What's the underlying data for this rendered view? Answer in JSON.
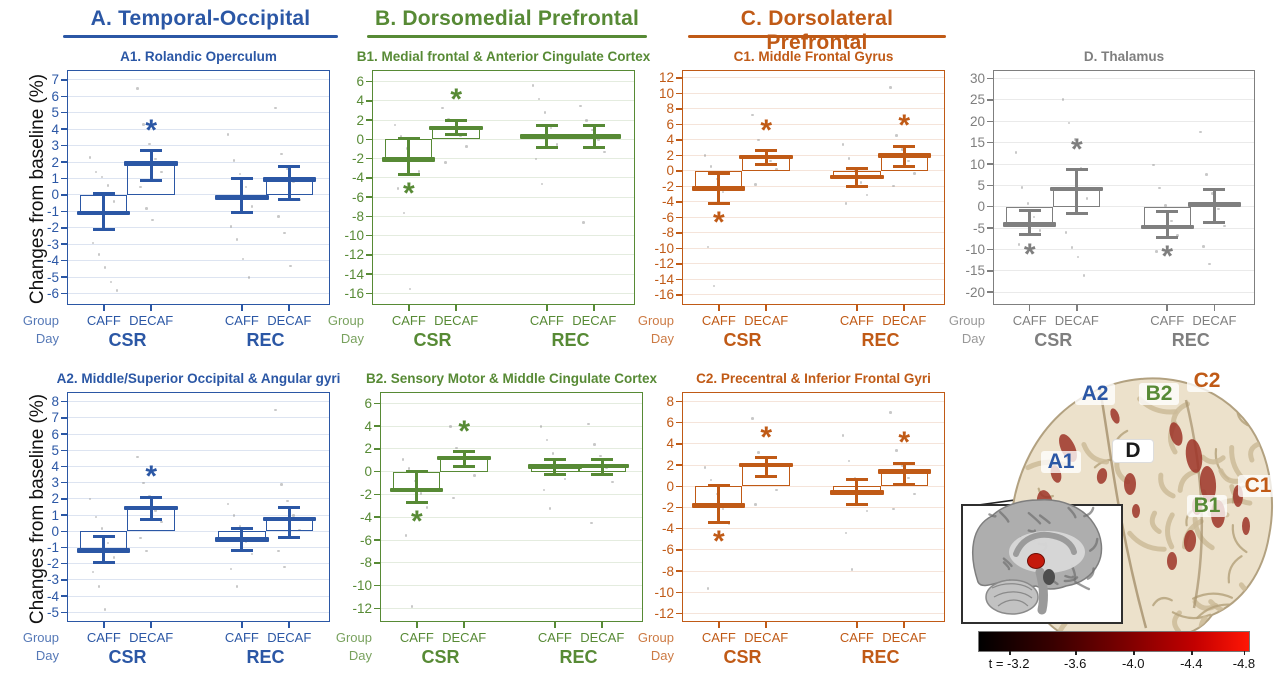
{
  "figure": {
    "ylabel": "Changes from baseline (%)",
    "row_labels": {
      "group": "Group",
      "day": "Day"
    },
    "conditions": [
      "CAFF",
      "DECAF"
    ],
    "days": [
      "CSR",
      "REC"
    ],
    "significance_marker": "*",
    "sections": [
      {
        "id": "A",
        "title": "A. Temporal-Occipital",
        "color": "#2b57a5"
      },
      {
        "id": "B",
        "title": "B. Dorsomedial Prefrontal",
        "color": "#578a35"
      },
      {
        "id": "C",
        "title": "C. Dorsolateral Prefrontal",
        "color": "#c05a16"
      }
    ]
  },
  "chart_data": [
    {
      "id": "A1",
      "section": "A",
      "type": "bar_with_error",
      "title": "A1. Rolandic Operculum",
      "color": "#2b57a5",
      "ylim": [
        -6.7,
        7.6
      ],
      "yticks": [
        7,
        6,
        5,
        4,
        3,
        2,
        1,
        0,
        -1,
        -2,
        -3,
        -4,
        -5,
        -6
      ],
      "groups": [
        {
          "day": "CSR",
          "condition": "CAFF",
          "value": -1.1,
          "ci_low": -2.1,
          "ci_high": 0.1,
          "significant": null,
          "points": [
            2.3,
            1.4,
            1.1,
            0.6,
            -0.4,
            -2.9,
            -3.6,
            -4.4,
            -5.3,
            -5.8
          ]
        },
        {
          "day": "CSR",
          "condition": "DECAF",
          "value": 1.9,
          "ci_low": 0.9,
          "ci_high": 2.7,
          "significant": "above",
          "points": [
            6.5,
            4.3,
            3.1,
            2.2,
            1.4,
            0.5,
            -0.8,
            -1.5
          ]
        },
        {
          "day": "REC",
          "condition": "CAFF",
          "value": -0.15,
          "ci_low": -1.1,
          "ci_high": 1.0,
          "significant": null,
          "points": [
            3.7,
            2.1,
            1.3,
            0.5,
            -0.7,
            -1.9,
            -2.7,
            -3.9,
            -5.0
          ]
        },
        {
          "day": "REC",
          "condition": "DECAF",
          "value": 0.95,
          "ci_low": -0.25,
          "ci_high": 1.75,
          "significant": null,
          "points": [
            5.3,
            2.5,
            1.6,
            0.8,
            -0.3,
            -1.3,
            -2.3,
            -4.3
          ]
        }
      ]
    },
    {
      "id": "B1",
      "section": "B",
      "type": "bar_with_error",
      "title": "B1. Medial frontal & Anterior Cingulate Cortex",
      "color": "#578a35",
      "ylim": [
        -17.2,
        7.2
      ],
      "yticks": [
        6,
        4,
        2,
        0,
        -2,
        -4,
        -6,
        -8,
        -10,
        -12,
        -14,
        -16
      ],
      "groups": [
        {
          "day": "CSR",
          "condition": "CAFF",
          "value": -2.1,
          "ci_low": -3.6,
          "ci_high": 0.1,
          "significant": "below",
          "points": [
            1.5,
            0.3,
            -0.9,
            -2.1,
            -3.3,
            -5.1,
            -7.6,
            -15.5
          ]
        },
        {
          "day": "CSR",
          "condition": "DECAF",
          "value": 1.2,
          "ci_low": 0.5,
          "ci_high": 2.0,
          "significant": "above",
          "points": [
            3.3,
            2.1,
            1.3,
            0.4,
            -0.7,
            -2.4
          ]
        },
        {
          "day": "REC",
          "condition": "CAFF",
          "value": 0.3,
          "ci_low": -0.8,
          "ci_high": 1.4,
          "significant": null,
          "points": [
            5.6,
            4.2,
            2.8,
            1.2,
            -0.5,
            -2.0,
            -4.6
          ]
        },
        {
          "day": "REC",
          "condition": "DECAF",
          "value": 0.3,
          "ci_low": -0.8,
          "ci_high": 1.4,
          "significant": null,
          "points": [
            3.5,
            2.0,
            1.0,
            0.0,
            -1.3,
            -8.6
          ]
        }
      ]
    },
    {
      "id": "C1",
      "section": "C",
      "type": "bar_with_error",
      "title": "C1. Middle Frontal Gyrus",
      "color": "#c05a16",
      "ylim": [
        -17.3,
        13.0
      ],
      "yticks": [
        12,
        10,
        8,
        6,
        4,
        2,
        0,
        -2,
        -4,
        -6,
        -8,
        -10,
        -12,
        -14,
        -16
      ],
      "groups": [
        {
          "day": "CSR",
          "condition": "CAFF",
          "value": -2.3,
          "ci_low": -4.2,
          "ci_high": -0.3,
          "significant": "below",
          "points": [
            2.0,
            0.6,
            -1.0,
            -2.7,
            -4.1,
            -9.8,
            -14.8
          ]
        },
        {
          "day": "CSR",
          "condition": "DECAF",
          "value": 1.8,
          "ci_low": 0.8,
          "ci_high": 2.6,
          "significant": "above",
          "points": [
            7.2,
            4.0,
            2.6,
            1.3,
            0.2,
            -1.7
          ]
        },
        {
          "day": "REC",
          "condition": "CAFF",
          "value": -0.8,
          "ci_low": -2.0,
          "ci_high": 0.3,
          "significant": null,
          "points": [
            3.4,
            1.6,
            0.2,
            -1.5,
            -3.1,
            -4.2
          ]
        },
        {
          "day": "REC",
          "condition": "DECAF",
          "value": 2.0,
          "ci_low": 0.6,
          "ci_high": 3.2,
          "significant": "above",
          "points": [
            10.8,
            4.6,
            2.8,
            1.3,
            -0.3,
            -1.9
          ]
        }
      ]
    },
    {
      "id": "D",
      "section": "D",
      "type": "bar_with_error",
      "title": "D. Thalamus",
      "color": "#7f7f7f",
      "ylim": [
        -23,
        32
      ],
      "yticks": [
        30,
        25,
        20,
        15,
        10,
        5,
        0,
        -5,
        -10,
        -15,
        -20
      ],
      "groups": [
        {
          "day": "CSR",
          "condition": "CAFF",
          "value": -4.2,
          "ci_low": -6.6,
          "ci_high": -0.8,
          "significant": "below",
          "points": [
            12.8,
            4.6,
            0.8,
            -2.3,
            -5.5,
            -8.8
          ]
        },
        {
          "day": "CSR",
          "condition": "DECAF",
          "value": 4.2,
          "ci_low": -1.7,
          "ci_high": 8.6,
          "significant": "above",
          "points": [
            25.2,
            19.6,
            15.8,
            9.0,
            2.0,
            -6.0,
            -9.5,
            -11.7,
            -16.0
          ]
        },
        {
          "day": "REC",
          "condition": "CAFF",
          "value": -4.7,
          "ci_low": -7.2,
          "ci_high": -1.2,
          "significant": "below",
          "points": [
            9.8,
            4.4,
            0.4,
            -3.3,
            -6.7,
            -10.4
          ]
        },
        {
          "day": "REC",
          "condition": "DECAF",
          "value": 0.5,
          "ci_low": -3.6,
          "ci_high": 4.1,
          "significant": null,
          "points": [
            17.6,
            7.6,
            3.2,
            -0.5,
            -4.5,
            -9.2,
            -13.4
          ]
        }
      ]
    },
    {
      "id": "A2",
      "section": "A",
      "type": "bar_with_error",
      "title": "A2. Middle/Superior Occipital & Angular gyri",
      "color": "#2b57a5",
      "ylim": [
        -5.6,
        8.6
      ],
      "yticks": [
        8,
        7,
        6,
        5,
        4,
        3,
        2,
        1,
        0,
        -1,
        -2,
        -3,
        -4,
        -5
      ],
      "groups": [
        {
          "day": "CSR",
          "condition": "CAFF",
          "value": -1.2,
          "ci_low": -1.9,
          "ci_high": -0.35,
          "significant": null,
          "points": [
            2.0,
            0.9,
            0.2,
            -0.7,
            -1.6,
            -2.5,
            -3.4,
            -4.8
          ]
        },
        {
          "day": "CSR",
          "condition": "DECAF",
          "value": 1.45,
          "ci_low": 0.75,
          "ci_high": 2.1,
          "significant": "above",
          "points": [
            4.6,
            3.0,
            2.2,
            1.3,
            0.6,
            -0.4,
            -1.2
          ]
        },
        {
          "day": "REC",
          "condition": "CAFF",
          "value": -0.5,
          "ci_low": -1.2,
          "ci_high": 0.15,
          "significant": null,
          "points": [
            1.7,
            1.0,
            0.3,
            -0.6,
            -1.4,
            -2.3,
            -3.4
          ]
        },
        {
          "day": "REC",
          "condition": "DECAF",
          "value": 0.75,
          "ci_low": -0.4,
          "ci_high": 1.5,
          "significant": null,
          "points": [
            7.5,
            2.9,
            1.9,
            1.0,
            0.1,
            -1.2,
            -2.2
          ]
        }
      ]
    },
    {
      "id": "B2",
      "section": "B",
      "type": "bar_with_error",
      "title": "B2. Sensory Motor & Middle Cingulate Cortex",
      "color": "#578a35",
      "ylim": [
        -13.2,
        7.0
      ],
      "yticks": [
        6,
        4,
        2,
        0,
        -2,
        -4,
        -6,
        -8,
        -10,
        -12
      ],
      "groups": [
        {
          "day": "CSR",
          "condition": "CAFF",
          "value": -1.6,
          "ci_low": -2.7,
          "ci_high": 0.05,
          "significant": "below",
          "points": [
            1.1,
            0.3,
            -0.8,
            -1.9,
            -3.1,
            -5.6,
            -11.8
          ]
        },
        {
          "day": "CSR",
          "condition": "DECAF",
          "value": 1.2,
          "ci_low": 0.45,
          "ci_high": 1.75,
          "significant": "above",
          "points": [
            4.0,
            2.1,
            1.3,
            0.5,
            -0.3,
            -2.3
          ]
        },
        {
          "day": "REC",
          "condition": "CAFF",
          "value": 0.45,
          "ci_low": -0.25,
          "ci_high": 1.1,
          "significant": null,
          "points": [
            4.0,
            2.8,
            1.6,
            0.6,
            -0.6,
            -1.6,
            -3.2
          ]
        },
        {
          "day": "REC",
          "condition": "DECAF",
          "value": 0.5,
          "ci_low": -0.25,
          "ci_high": 1.1,
          "significant": null,
          "points": [
            4.2,
            2.4,
            1.4,
            0.4,
            -0.9,
            -4.5
          ]
        }
      ]
    },
    {
      "id": "C2",
      "section": "C",
      "type": "bar_with_error",
      "title": "C2. Precentral & Inferior Frontal Gyri",
      "color": "#c05a16",
      "ylim": [
        -12.8,
        8.9
      ],
      "yticks": [
        8,
        6,
        4,
        2,
        0,
        -2,
        -4,
        -6,
        -8,
        -10,
        -12
      ],
      "groups": [
        {
          "day": "CSR",
          "condition": "CAFF",
          "value": -1.8,
          "ci_low": -3.4,
          "ci_high": 0.05,
          "significant": "below",
          "points": [
            1.8,
            0.6,
            -0.7,
            -2.1,
            -3.5,
            -9.6
          ]
        },
        {
          "day": "CSR",
          "condition": "DECAF",
          "value": 2.0,
          "ci_low": 0.9,
          "ci_high": 2.7,
          "significant": "above",
          "points": [
            6.4,
            3.2,
            2.0,
            0.9,
            -0.3,
            -1.7
          ]
        },
        {
          "day": "REC",
          "condition": "CAFF",
          "value": -0.6,
          "ci_low": -1.7,
          "ci_high": 0.6,
          "significant": null,
          "points": [
            4.8,
            2.4,
            0.8,
            -0.7,
            -2.3,
            -4.4,
            -7.8
          ]
        },
        {
          "day": "REC",
          "condition": "DECAF",
          "value": 1.4,
          "ci_low": 0.2,
          "ci_high": 2.2,
          "significant": "above",
          "points": [
            7.0,
            3.4,
            2.0,
            0.8,
            -0.7,
            -2.1
          ]
        }
      ]
    }
  ],
  "brain": {
    "region_labels": [
      {
        "text": "A2",
        "color": "#2b57a5"
      },
      {
        "text": "B2",
        "color": "#578a35"
      },
      {
        "text": "C2",
        "color": "#c05a16"
      },
      {
        "text": "A1",
        "color": "#2b57a5"
      },
      {
        "text": "D",
        "color": "#1a1a1a"
      },
      {
        "text": "B1",
        "color": "#578a35"
      },
      {
        "text": "C1",
        "color": "#c05a16"
      }
    ],
    "colorbar": {
      "ticks": [
        "t = -3.2",
        "-3.6",
        "-4.0",
        "-4.4",
        "-4.8"
      ],
      "gradient_from": "#000000",
      "gradient_to": "#ff1605"
    }
  }
}
